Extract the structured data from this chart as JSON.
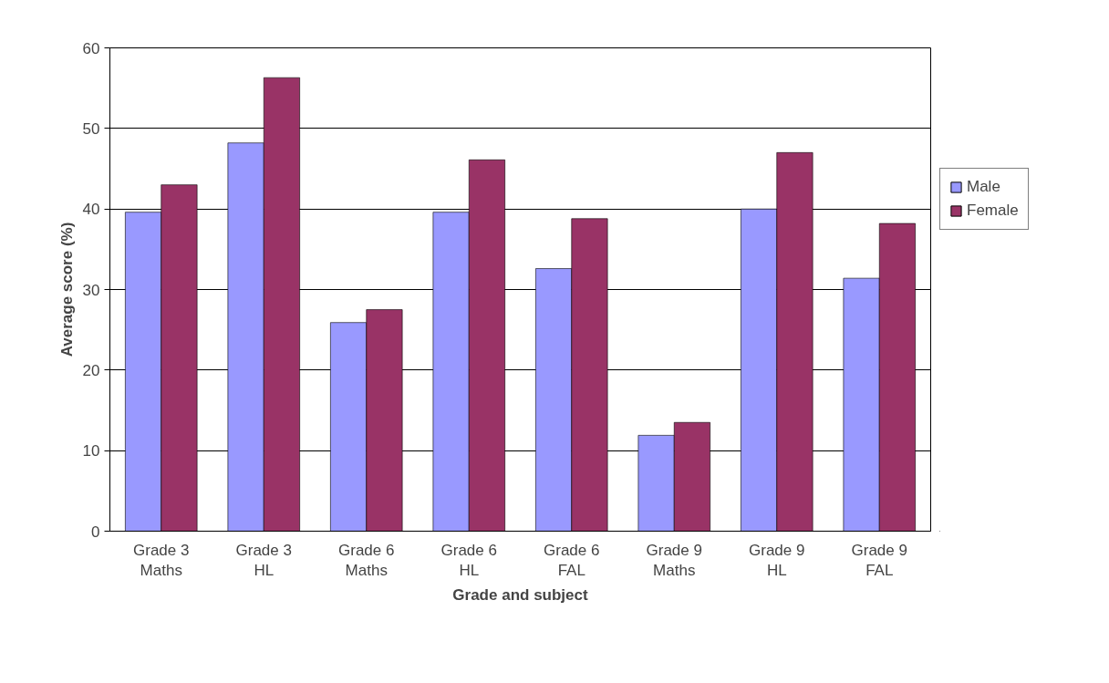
{
  "chart_data": {
    "type": "bar",
    "xlabel": "Grade and subject",
    "ylabel": "Average score (%)",
    "categories": [
      "Grade 3\nMaths",
      "Grade 3\nHL",
      "Grade 6\nMaths",
      "Grade 6\nHL",
      "Grade 6\nFAL",
      "Grade 9\nMaths",
      "Grade 9\nHL",
      "Grade 9\nFAL"
    ],
    "series": [
      {
        "name": "Male",
        "color": "#9999ff",
        "values": [
          39.6,
          48.2,
          25.9,
          39.6,
          32.6,
          11.9,
          40.0,
          31.4
        ]
      },
      {
        "name": "Female",
        "color": "#993366",
        "values": [
          43.0,
          56.3,
          27.5,
          46.1,
          38.8,
          13.5,
          47.0,
          38.2
        ]
      }
    ],
    "ylim": [
      0,
      60
    ],
    "yticks": [
      0,
      10,
      20,
      30,
      40,
      50,
      60
    ],
    "grid": "y",
    "legend": "right"
  }
}
